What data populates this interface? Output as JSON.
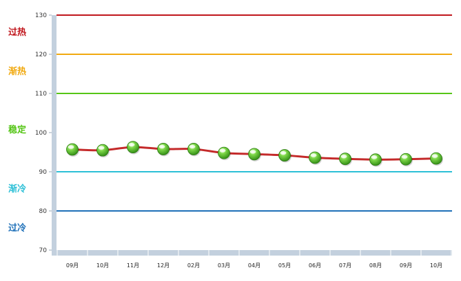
{
  "chart_data": {
    "type": "line",
    "categories": [
      "09月",
      "10月",
      "11月",
      "12月",
      "02月",
      "03月",
      "04月",
      "05月",
      "06月",
      "07月",
      "08月",
      "09月",
      "10月"
    ],
    "values": [
      95.7,
      95.5,
      96.3,
      95.8,
      95.8,
      94.8,
      94.5,
      94.2,
      93.6,
      93.3,
      93.1,
      93.2,
      93.4
    ],
    "ylim": [
      70,
      130
    ],
    "yticks": [
      70,
      80,
      90,
      100,
      110,
      120,
      130
    ],
    "grid": false,
    "thresholds": [
      {
        "label": "过热",
        "value": 130,
        "color": "#c0151b"
      },
      {
        "label": "渐热",
        "value": 120,
        "color": "#f1a90f"
      },
      {
        "label": "稳定",
        "value": 110,
        "color": "#55c516"
      },
      {
        "label": "渐冷",
        "value": 90,
        "color": "#2bbfd6"
      },
      {
        "label": "过冷",
        "value": 80,
        "color": "#1d6fb8"
      }
    ],
    "zone_labels": [
      {
        "text": "过热",
        "value": 126,
        "color": "#c0151b"
      },
      {
        "text": "渐热",
        "value": 116,
        "color": "#f1a90f"
      },
      {
        "text": "稳定",
        "value": 101,
        "color": "#55c516"
      },
      {
        "text": "渐冷",
        "value": 86,
        "color": "#2bbfd6"
      },
      {
        "text": "过冷",
        "value": 76,
        "color": "#1d6fb8"
      }
    ],
    "line_color": "#c42a2a",
    "marker_color": "#3aa515",
    "axis_color": "#c3d0de"
  }
}
